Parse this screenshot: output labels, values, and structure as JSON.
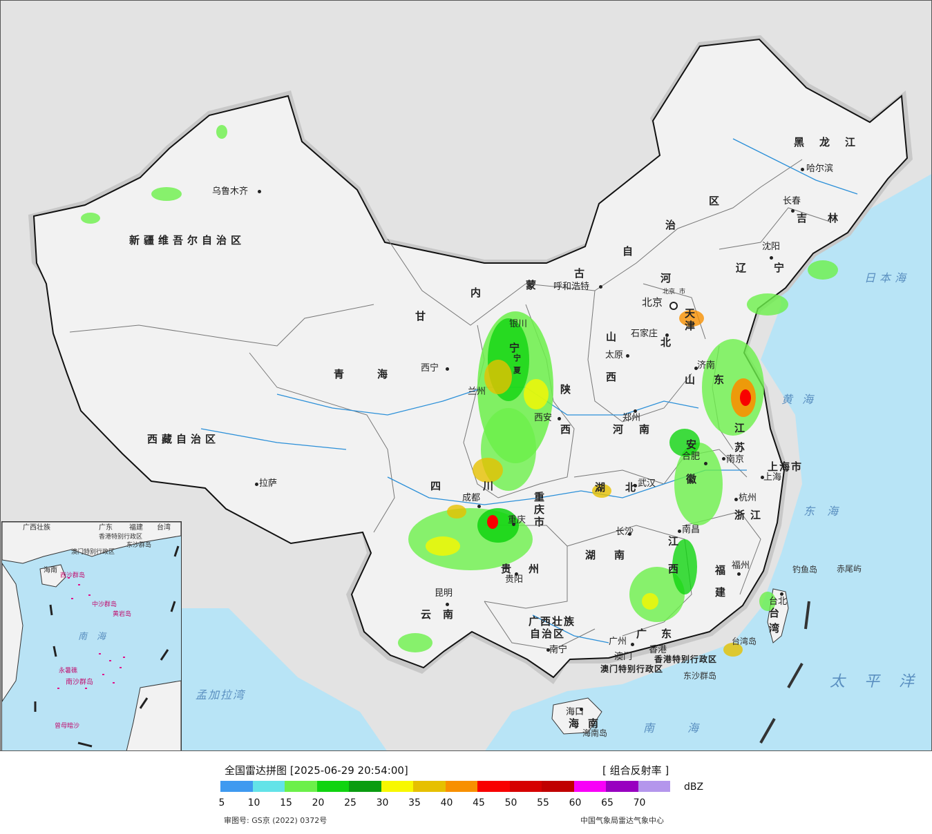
{
  "map": {
    "provinces": [
      "新疆维吾尔自治区",
      "西藏自治区",
      "青海",
      "甘",
      "内",
      "蒙",
      "古",
      "自",
      "治",
      "区",
      "黑龙江",
      "吉林",
      "辽宁",
      "河",
      "北",
      "山",
      "西",
      "陕",
      "西",
      "四",
      "川",
      "重庆市",
      "湖",
      "北",
      "湖",
      "南",
      "河",
      "南",
      "山",
      "东",
      "江",
      "苏",
      "安",
      "徽",
      "浙江",
      "江",
      "西",
      "福",
      "建",
      "贵",
      "州",
      "云",
      "南",
      "广西壮族",
      "自治区",
      "广",
      "东",
      "海",
      "南",
      "台",
      "湾",
      "宁",
      "上海市",
      "天",
      "津",
      "北京",
      "市",
      "宁",
      "夏"
    ],
    "cities": [
      "乌鲁木齐",
      "哈尔滨",
      "长春",
      "沈阳",
      "呼和浩特",
      "北京",
      "天津",
      "石家庄",
      "太原",
      "济南",
      "郑州",
      "西宁",
      "银川",
      "兰州",
      "西安",
      "合肥",
      "南京",
      "上海",
      "杭州",
      "武汉",
      "长沙",
      "南昌",
      "福州",
      "台北",
      "成都",
      "重庆",
      "贵阳",
      "昆明",
      "南宁",
      "广州",
      "香港",
      "澳门",
      "海口",
      "拉萨"
    ],
    "seas": [
      "日本海",
      "黄海",
      "东海",
      "太平洋",
      "南海",
      "孟加拉湾"
    ],
    "islands": [
      "钓鱼岛",
      "赤尾屿",
      "台湾岛",
      "东沙群岛",
      "海南岛"
    ],
    "special": [
      "香港特别行政区",
      "澳门特别行政区"
    ],
    "inset_labels": [
      "广西壮族",
      "广东",
      "福建",
      "台湾",
      "香港特别行政区",
      "澳门特别行政区",
      "东沙群岛",
      "海南",
      "西沙群岛",
      "中沙群岛",
      "黄岩岛",
      "南海",
      "永暑礁",
      "南沙群岛",
      "曾母暗沙"
    ]
  },
  "legend": {
    "title": "全国雷达拼图 [2025-06-29 20:54:00]",
    "product": "[ 组合反射率 ]",
    "unit": "dBZ",
    "ticks": [
      "5",
      "10",
      "15",
      "20",
      "25",
      "30",
      "35",
      "40",
      "45",
      "50",
      "55",
      "60",
      "65",
      "70"
    ],
    "colors": [
      "#3f9af0",
      "#63e3e8",
      "#6cf04a",
      "#10d410",
      "#0a9c10",
      "#f8f800",
      "#e6c000",
      "#f89000",
      "#f80000",
      "#d60000",
      "#c00000",
      "#f800f8",
      "#9800c0",
      "#b496ec"
    ],
    "approval": "审图号: GS京 (2022) 0372号",
    "source": "中国气象局雷达气象中心"
  }
}
